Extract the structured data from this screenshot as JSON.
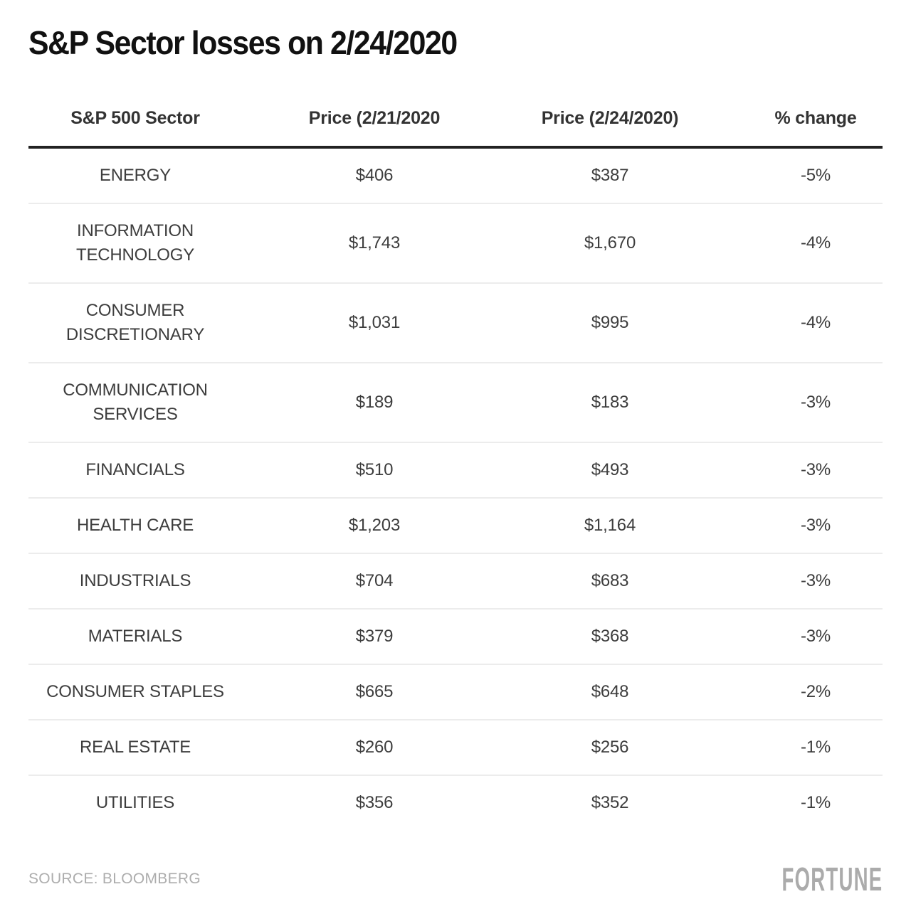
{
  "title": "S&P Sector losses on 2/24/2020",
  "table": {
    "columns": [
      "S&P 500 Sector",
      "Price (2/21/2020",
      "Price (2/24/2020)",
      "% change"
    ],
    "rows": [
      {
        "sector": "ENERGY",
        "price_0221": "$406",
        "price_0224": "$387",
        "pct_change": "-5%"
      },
      {
        "sector": "INFORMATION TECHNOLOGY",
        "price_0221": "$1,743",
        "price_0224": "$1,670",
        "pct_change": "-4%"
      },
      {
        "sector": "CONSUMER DISCRETIONARY",
        "price_0221": "$1,031",
        "price_0224": "$995",
        "pct_change": "-4%"
      },
      {
        "sector": "COMMUNICATION SERVICES",
        "price_0221": "$189",
        "price_0224": "$183",
        "pct_change": "-3%"
      },
      {
        "sector": "FINANCIALS",
        "price_0221": "$510",
        "price_0224": "$493",
        "pct_change": "-3%"
      },
      {
        "sector": "HEALTH CARE",
        "price_0221": "$1,203",
        "price_0224": "$1,164",
        "pct_change": "-3%"
      },
      {
        "sector": "INDUSTRIALS",
        "price_0221": "$704",
        "price_0224": "$683",
        "pct_change": "-3%"
      },
      {
        "sector": "MATERIALS",
        "price_0221": "$379",
        "price_0224": "$368",
        "pct_change": "-3%"
      },
      {
        "sector": "CONSUMER STAPLES",
        "price_0221": "$665",
        "price_0224": "$648",
        "pct_change": "-2%"
      },
      {
        "sector": "REAL ESTATE",
        "price_0221": "$260",
        "price_0224": "$256",
        "pct_change": "-1%"
      },
      {
        "sector": "UTILITIES",
        "price_0221": "$356",
        "price_0224": "$352",
        "pct_change": "-1%"
      }
    ]
  },
  "footer": {
    "source": "SOURCE: BLOOMBERG",
    "brand": "FORTUNE"
  },
  "colors": {
    "title_text": "#111111",
    "header_text": "#333333",
    "body_text": "#3d3d3d",
    "header_rule": "#222222",
    "row_divider": "#ececec",
    "muted_gray": "#adadad"
  },
  "chart_data": {
    "type": "table",
    "title": "S&P Sector losses on 2/24/2020",
    "columns": [
      "S&P 500 Sector",
      "Price (2/21/2020",
      "Price (2/24/2020)",
      "% change"
    ],
    "rows": [
      [
        "ENERGY",
        406,
        387,
        -5
      ],
      [
        "INFORMATION TECHNOLOGY",
        1743,
        1670,
        -4
      ],
      [
        "CONSUMER DISCRETIONARY",
        1031,
        995,
        -4
      ],
      [
        "COMMUNICATION SERVICES",
        189,
        183,
        -3
      ],
      [
        "FINANCIALS",
        510,
        493,
        -3
      ],
      [
        "HEALTH CARE",
        1203,
        1164,
        -3
      ],
      [
        "INDUSTRIALS",
        704,
        683,
        -3
      ],
      [
        "MATERIALS",
        379,
        368,
        -3
      ],
      [
        "CONSUMER STAPLES",
        665,
        648,
        -2
      ],
      [
        "REAL ESTATE",
        260,
        256,
        -1
      ],
      [
        "UTILITIES",
        356,
        352,
        -1
      ]
    ],
    "units": {
      "price": "USD",
      "pct_change": "percent"
    },
    "source": "SOURCE: BLOOMBERG",
    "layout": {
      "grid": "horizontal-row-dividers",
      "header_rule": "thick",
      "alignment": "center"
    }
  }
}
